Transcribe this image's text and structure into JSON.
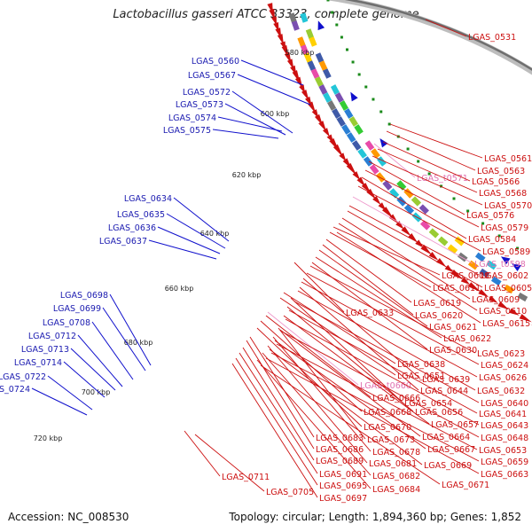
{
  "title": "Lactobacillus gasseri ATCC 33323, complete genome",
  "footer": {
    "accession": "Accession: NC_008530",
    "topology": "Topology: circular; Length: 1,894,360 bp; Genes: 1,852"
  },
  "colors": {
    "forward": "#cc1010",
    "reverse": "#1010cc",
    "rna": "#ee99cc",
    "backbone": "#888888",
    "tick": "#1a8a1a"
  },
  "kbp_ticks": [
    {
      "label": "580 kbp"
    },
    {
      "label": "600 kbp"
    },
    {
      "label": "620 kbp"
    },
    {
      "label": "640 kbp"
    },
    {
      "label": "660 kbp"
    },
    {
      "label": "680 kbp"
    },
    {
      "label": "700 kbp"
    },
    {
      "label": "720 kbp"
    }
  ],
  "inner_labels": [
    {
      "text": "LGAS_0560"
    },
    {
      "text": "LGAS_0567"
    },
    {
      "text": "LGAS_0572"
    },
    {
      "text": "LGAS_0573"
    },
    {
      "text": "LGAS_0574"
    },
    {
      "text": "LGAS_0575"
    },
    {
      "text": "LGAS_0634"
    },
    {
      "text": "LGAS_0635"
    },
    {
      "text": "LGAS_0636"
    },
    {
      "text": "LGAS_0637"
    },
    {
      "text": "LGAS_0698"
    },
    {
      "text": "LGAS_0699"
    },
    {
      "text": "LGAS_0708"
    },
    {
      "text": "LGAS_0712"
    },
    {
      "text": "LGAS_0713"
    },
    {
      "text": "LGAS_0714"
    },
    {
      "text": "LGAS_0722"
    },
    {
      "text": "LGAS_0724"
    }
  ],
  "outer_labels": [
    {
      "text": "LGAS_0531",
      "kind": "cds"
    },
    {
      "text": "LGAS_0561",
      "kind": "cds"
    },
    {
      "text": "LGAS_0563",
      "kind": "cds"
    },
    {
      "text": "LGAS_t0571",
      "kind": "rna"
    },
    {
      "text": "LGAS_0566",
      "kind": "cds"
    },
    {
      "text": "LGAS_0568",
      "kind": "cds"
    },
    {
      "text": "LGAS_0570",
      "kind": "cds"
    },
    {
      "text": "LGAS_0576",
      "kind": "cds"
    },
    {
      "text": "LGAS_0579",
      "kind": "cds"
    },
    {
      "text": "LGAS_0584",
      "kind": "cds"
    },
    {
      "text": "LGAS_0589",
      "kind": "cds"
    },
    {
      "text": "LGAS_t0598",
      "kind": "rna"
    },
    {
      "text": "LGAS_0602",
      "kind": "cds"
    },
    {
      "text": "LGAS_0608",
      "kind": "cds"
    },
    {
      "text": "LGAS_0611",
      "kind": "cds"
    },
    {
      "text": "LGAS_0605",
      "kind": "cds"
    },
    {
      "text": "LGAS_0609",
      "kind": "cds"
    },
    {
      "text": "LGAS_0619",
      "kind": "cds"
    },
    {
      "text": "LGAS_0610",
      "kind": "cds"
    },
    {
      "text": "LGAS_0633",
      "kind": "cds"
    },
    {
      "text": "LGAS_0620",
      "kind": "cds"
    },
    {
      "text": "LGAS_0615",
      "kind": "cds"
    },
    {
      "text": "LGAS_0621",
      "kind": "cds"
    },
    {
      "text": "LGAS_0622",
      "kind": "cds"
    },
    {
      "text": "LGAS_0630",
      "kind": "cds"
    },
    {
      "text": "LGAS_0623",
      "kind": "cds"
    },
    {
      "text": "LGAS_0638",
      "kind": "cds"
    },
    {
      "text": "LGAS_0624",
      "kind": "cds"
    },
    {
      "text": "LGAS_0651",
      "kind": "cds"
    },
    {
      "text": "LGAS_0639",
      "kind": "cds"
    },
    {
      "text": "LGAS_0626",
      "kind": "cds"
    },
    {
      "text": "LGAS_t0660",
      "kind": "rna"
    },
    {
      "text": "LGAS_0644",
      "kind": "cds"
    },
    {
      "text": "LGAS_0632",
      "kind": "cds"
    },
    {
      "text": "LGAS_0666",
      "kind": "cds"
    },
    {
      "text": "LGAS_0654",
      "kind": "cds"
    },
    {
      "text": "LGAS_0640",
      "kind": "cds"
    },
    {
      "text": "LGAS_0668",
      "kind": "cds"
    },
    {
      "text": "LGAS_0656",
      "kind": "cds"
    },
    {
      "text": "LGAS_0641",
      "kind": "cds"
    },
    {
      "text": "LGAS_0670",
      "kind": "cds"
    },
    {
      "text": "LGAS_0657",
      "kind": "cds"
    },
    {
      "text": "LGAS_0643",
      "kind": "cds"
    },
    {
      "text": "LGAS_0683",
      "kind": "cds"
    },
    {
      "text": "LGAS_0673",
      "kind": "cds"
    },
    {
      "text": "LGAS_0664",
      "kind": "cds"
    },
    {
      "text": "LGAS_0648",
      "kind": "cds"
    },
    {
      "text": "LGAS_0686",
      "kind": "cds"
    },
    {
      "text": "LGAS_0678",
      "kind": "cds"
    },
    {
      "text": "LGAS_0667",
      "kind": "cds"
    },
    {
      "text": "LGAS_0653",
      "kind": "cds"
    },
    {
      "text": "LGAS_0689",
      "kind": "cds"
    },
    {
      "text": "LGAS_0681",
      "kind": "cds"
    },
    {
      "text": "LGAS_0669",
      "kind": "cds"
    },
    {
      "text": "LGAS_0659",
      "kind": "cds"
    },
    {
      "text": "LGAS_0711",
      "kind": "cds"
    },
    {
      "text": "LGAS_0691",
      "kind": "cds"
    },
    {
      "text": "LGAS_0682",
      "kind": "cds"
    },
    {
      "text": "LGAS_0663",
      "kind": "cds"
    },
    {
      "text": "LGAS_0695",
      "kind": "cds"
    },
    {
      "text": "LGAS_0684",
      "kind": "cds"
    },
    {
      "text": "LGAS_0671",
      "kind": "cds"
    },
    {
      "text": "LGAS_0705",
      "kind": "cds"
    },
    {
      "text": "LGAS_0697",
      "kind": "cds"
    }
  ]
}
